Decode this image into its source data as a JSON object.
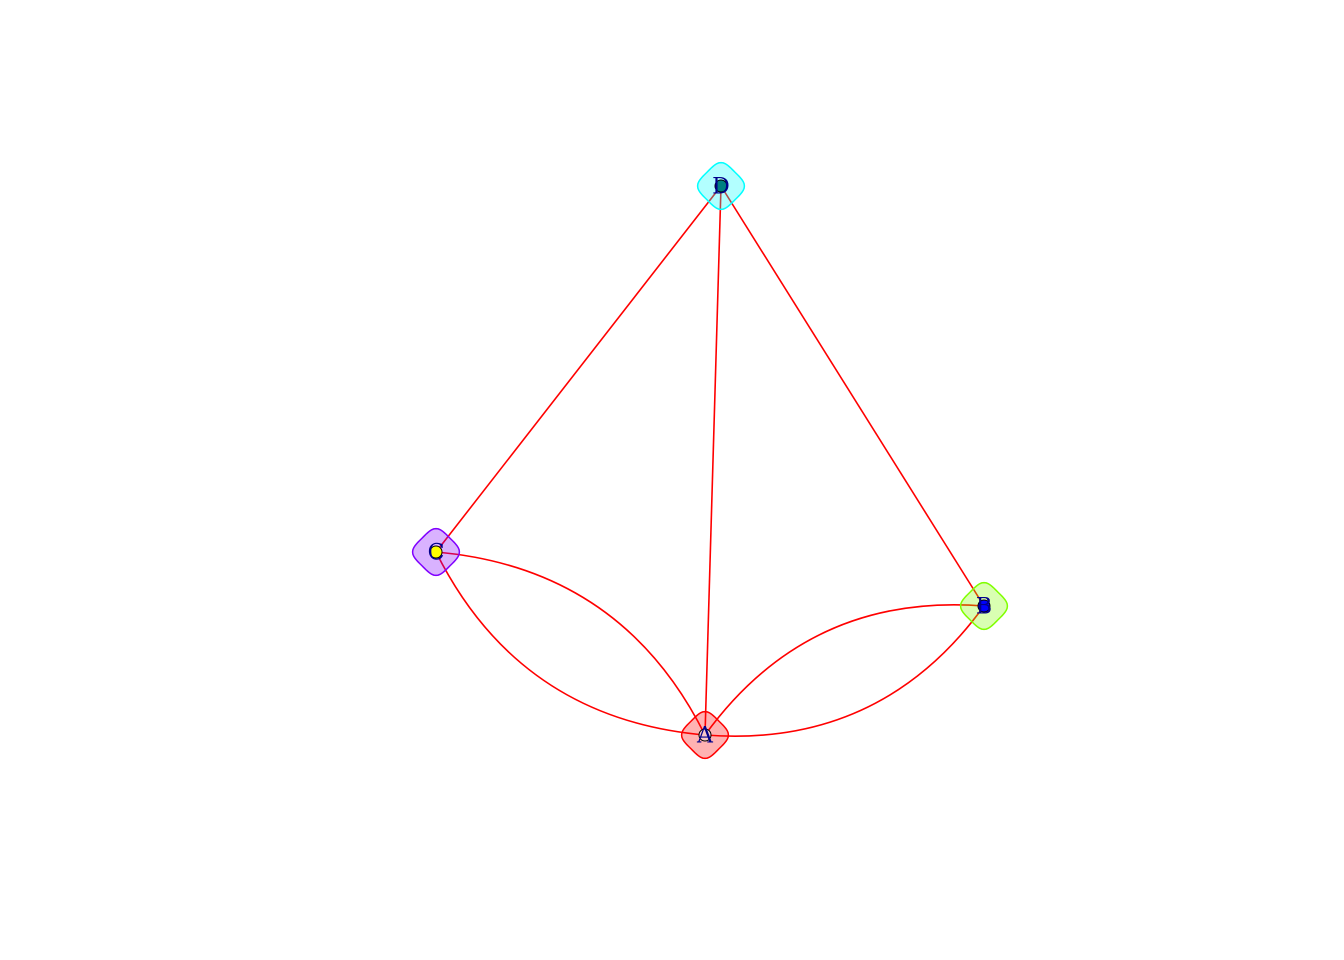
{
  "graph": {
    "nodes": [
      {
        "id": "A",
        "label": "A",
        "color": "#ff0000",
        "dot_color": "#f7c8c8"
      },
      {
        "id": "B",
        "label": "B",
        "color": "#80ff00",
        "dot_color": "#0000ff"
      },
      {
        "id": "C",
        "label": "C",
        "color": "#8000ff",
        "dot_color": "#ffff00"
      },
      {
        "id": "D",
        "label": "D",
        "color": "#00ffff",
        "dot_color": "#008080"
      }
    ],
    "edges": [
      {
        "from": "C",
        "to": "D"
      },
      {
        "from": "A",
        "to": "D"
      },
      {
        "from": "B",
        "to": "D"
      },
      {
        "from": "C",
        "to": "A"
      },
      {
        "from": "A",
        "to": "C"
      },
      {
        "from": "A",
        "to": "B"
      },
      {
        "from": "B",
        "to": "A"
      }
    ],
    "edge_color": "#ff0000",
    "label_color": "#00008b"
  }
}
